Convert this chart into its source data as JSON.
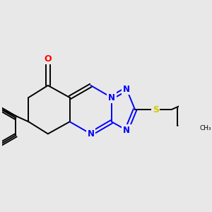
{
  "background_color": "#e8e8e8",
  "bond_color": "#000000",
  "N_color": "#0000ff",
  "O_color": "#ff0000",
  "S_color": "#cccc00",
  "bond_width": 1.4,
  "fig_width": 3.0,
  "fig_height": 3.0,
  "xlim": [
    -2.8,
    4.5
  ],
  "ylim": [
    -2.5,
    2.8
  ]
}
